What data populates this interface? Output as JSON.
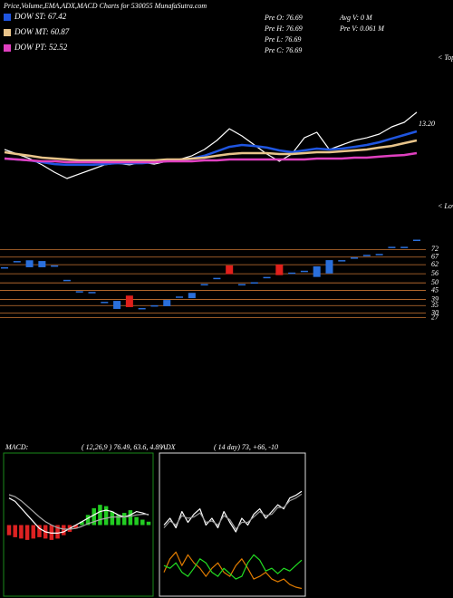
{
  "chart_data": [
    {
      "type": "line",
      "title": "Price,Volume,EMA,ADX,MACD Charts for 530055 MunafaSutra.com",
      "annotations": [
        "Pre O: 76.69",
        "Pre H: 76.69",
        "Pre L: 76.69",
        "Pre C: 76.69",
        "Avg V: 0 M",
        "Pre V: 0.061 M",
        "13.20",
        "< Tops",
        "< Lows"
      ],
      "ylim": [
        0,
        100
      ],
      "series": [
        {
          "color": "#ffffff",
          "values": [
            41.4,
            37.9,
            34.5,
            29.7,
            24.1,
            19.3,
            22.8,
            26.2,
            29.7,
            31.0,
            29.7,
            31.7,
            30.3,
            32.4,
            33.8,
            36.6,
            41.4,
            48.3,
            57.2,
            51.7,
            44.8,
            37.9,
            32.4,
            37.9,
            50.3,
            54.5,
            41.4,
            44.8,
            48.3,
            50.3,
            53.1,
            58.6,
            62.1,
            69.7
          ]
        },
        {
          "name": "DOW ST: 67.42",
          "color": "#1f55e0",
          "values": [
            34.5,
            33.8,
            33.1,
            31.7,
            30.3,
            29.7,
            29.7,
            29.7,
            30.3,
            31.0,
            31.0,
            31.0,
            31.7,
            32.4,
            33.1,
            34.5,
            36.6,
            40.0,
            43.4,
            44.8,
            44.1,
            42.8,
            40.7,
            39.3,
            40.7,
            42.1,
            41.4,
            42.1,
            43.4,
            44.8,
            46.9,
            49.7,
            52.4,
            55.2
          ]
        },
        {
          "name": "DOW MT: 60.87",
          "color": "#e8c48a",
          "values": [
            39.3,
            37.9,
            36.6,
            35.2,
            34.5,
            33.8,
            33.1,
            33.1,
            33.1,
            33.1,
            33.1,
            33.1,
            33.1,
            33.8,
            33.8,
            34.5,
            35.2,
            36.6,
            37.9,
            38.6,
            38.6,
            38.6,
            37.9,
            37.9,
            38.6,
            39.3,
            39.3,
            40.0,
            40.7,
            41.4,
            42.8,
            44.1,
            46.2,
            48.3
          ]
        },
        {
          "name": "DOW PT: 52.52",
          "color": "#e040c0",
          "values": [
            34.5,
            33.8,
            33.1,
            32.4,
            32.4,
            31.7,
            31.7,
            31.7,
            31.7,
            31.7,
            31.7,
            31.7,
            31.7,
            32.4,
            32.4,
            32.4,
            33.1,
            33.1,
            33.8,
            33.8,
            33.8,
            33.8,
            33.8,
            33.8,
            33.8,
            34.5,
            34.5,
            34.5,
            35.2,
            35.2,
            35.9,
            36.6,
            37.2,
            38.6
          ]
        }
      ]
    },
    {
      "type": "candlestick",
      "ylim": [
        25,
        80
      ],
      "yticks": [
        72,
        67,
        62,
        56,
        50,
        45,
        39,
        35,
        30,
        27
      ],
      "grid": true,
      "grid_color": "#c87533",
      "up_color": "#2a6fdb",
      "down_color": "#e0201b",
      "open": [
        60.3,
        64.4,
        60.3,
        60.3,
        61.5,
        52,
        44.5,
        44,
        37.5,
        32.8,
        41.6,
        33.4,
        35.2,
        34.6,
        41,
        39.9,
        49.2,
        53.3,
        61.5,
        49.2,
        50.4,
        53.9,
        62.1,
        56.8,
        58,
        53.9,
        56.2,
        65,
        66.8,
        68.5,
        69.1,
        73.8,
        73.8,
        78.5
      ],
      "close": [
        60.3,
        64.4,
        64.9,
        64.4,
        61.5,
        52,
        44.5,
        44,
        37.5,
        38.1,
        34,
        33.4,
        35.2,
        38.7,
        41,
        43.4,
        49.2,
        53.3,
        55.7,
        49.2,
        50.4,
        53.9,
        55.1,
        56.8,
        58,
        60.9,
        65,
        65,
        66.8,
        68.5,
        69.1,
        73.8,
        73.8,
        78.5
      ]
    },
    {
      "type": "macd",
      "title": "MACD:",
      "subtitle": "( 12,26,9 ) 76.49, 63.6, 4.89",
      "ylim": [
        -1,
        1
      ],
      "positive_color": "#22cc22",
      "negative_color": "#dd2222",
      "histogram": [
        -0.15,
        -0.18,
        -0.2,
        -0.22,
        -0.2,
        -0.18,
        -0.2,
        -0.22,
        -0.2,
        -0.15,
        -0.1,
        -0.05,
        0.05,
        0.15,
        0.25,
        0.3,
        0.28,
        0.2,
        0.15,
        0.18,
        0.22,
        0.12,
        0.08,
        0.05
      ],
      "series": [
        {
          "color": "#ffffff",
          "values": [
            0.4,
            0.35,
            0.25,
            0.15,
            0.05,
            -0.05,
            -0.1,
            -0.12,
            -0.12,
            -0.1,
            -0.05,
            0.0,
            0.05,
            0.1,
            0.15,
            0.2,
            0.22,
            0.2,
            0.15,
            0.12,
            0.15,
            0.2,
            0.18,
            0.15
          ]
        },
        {
          "color": "#aaaaaa",
          "values": [
            0.45,
            0.42,
            0.36,
            0.28,
            0.2,
            0.12,
            0.05,
            0.0,
            -0.04,
            -0.06,
            -0.06,
            -0.05,
            -0.02,
            0.02,
            0.05,
            0.08,
            0.1,
            0.12,
            0.12,
            0.12,
            0.13,
            0.15,
            0.16,
            0.16
          ]
        }
      ]
    },
    {
      "type": "line",
      "title": "ADX",
      "subtitle": "( 14 day) 73, +66, -10",
      "ylim": [
        0,
        100
      ],
      "series": [
        {
          "color": "#ffffff",
          "values": [
            50,
            55,
            48,
            60,
            52,
            58,
            62,
            50,
            55,
            48,
            60,
            52,
            45,
            55,
            50,
            58,
            62,
            55,
            60,
            65,
            62,
            70,
            72,
            75
          ]
        },
        {
          "color": "#999999",
          "values": [
            48,
            53,
            50,
            57,
            55,
            56,
            59,
            52,
            53,
            50,
            57,
            54,
            47,
            52,
            52,
            56,
            60,
            57,
            58,
            63,
            63,
            68,
            70,
            73
          ]
        },
        {
          "color": "#e07b00",
          "values": [
            15,
            25,
            30,
            20,
            28,
            22,
            18,
            12,
            18,
            22,
            15,
            12,
            20,
            25,
            18,
            10,
            12,
            15,
            10,
            8,
            10,
            6,
            4,
            3
          ]
        },
        {
          "color": "#22dd22",
          "values": [
            20,
            18,
            22,
            15,
            12,
            18,
            25,
            22,
            15,
            12,
            18,
            14,
            10,
            12,
            22,
            28,
            24,
            16,
            18,
            14,
            18,
            16,
            20,
            24
          ]
        }
      ]
    }
  ]
}
